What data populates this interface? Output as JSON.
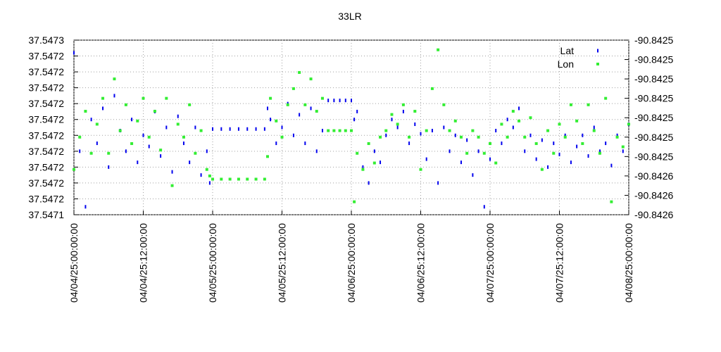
{
  "chart_data": {
    "type": "scatter",
    "title": "33LR",
    "grid": true,
    "legend": "top-right",
    "xlim": [
      "04/04/25:00:00:00",
      "04/08/25:00:00:00"
    ],
    "xticks": [
      "04/04/25:00:00:00",
      "04/04/25:12:00:00",
      "04/05/25:00:00:00",
      "04/05/25:12:00:00",
      "04/06/25:00:00:00",
      "04/06/25:12:00:00",
      "04/07/25:00:00:00",
      "04/07/25:12:00:00",
      "04/08/25:00:00:00"
    ],
    "ylim": [
      37.547145,
      37.547255
    ],
    "yticks": [
      {
        "value": 37.547145,
        "label": "37.5471"
      },
      {
        "value": 37.547155,
        "label": "37.5472"
      },
      {
        "value": 37.547165,
        "label": "37.5472"
      },
      {
        "value": 37.547175,
        "label": "37.5472"
      },
      {
        "value": 37.547185,
        "label": "37.5472"
      },
      {
        "value": 37.547195,
        "label": "37.5472"
      },
      {
        "value": 37.547205,
        "label": "37.5472"
      },
      {
        "value": 37.547215,
        "label": "37.5472"
      },
      {
        "value": 37.547225,
        "label": "37.5472"
      },
      {
        "value": 37.547235,
        "label": "37.5472"
      },
      {
        "value": 37.547245,
        "label": "37.5472"
      },
      {
        "value": 37.547255,
        "label": "37.5473"
      }
    ],
    "y2lim": [
      -90.842564,
      -90.84251
    ],
    "y2ticks": [
      {
        "value": -90.842564,
        "label": "-90.8426"
      },
      {
        "value": -90.842558,
        "label": "-90.8426"
      },
      {
        "value": -90.842552,
        "label": "-90.8426"
      },
      {
        "value": -90.842546,
        "label": "-90.8425"
      },
      {
        "value": -90.84254,
        "label": "-90.8425"
      },
      {
        "value": -90.842534,
        "label": "-90.8425"
      },
      {
        "value": -90.842528,
        "label": "-90.8425"
      },
      {
        "value": -90.842522,
        "label": "-90.8425"
      },
      {
        "value": -90.842516,
        "label": "-90.8425"
      },
      {
        "value": -90.84251,
        "label": "-90.8425"
      }
    ],
    "x": [
      "04/04/25:00:00:00",
      "04/04/25:01:00:00",
      "04/04/25:02:00:00",
      "04/04/25:03:00:00",
      "04/04/25:04:00:00",
      "04/04/25:05:00:00",
      "04/04/25:06:00:00",
      "04/04/25:07:00:00",
      "04/04/25:08:00:00",
      "04/04/25:09:00:00",
      "04/04/25:10:00:00",
      "04/04/25:11:00:00",
      "04/04/25:12:00:00",
      "04/04/25:13:00:00",
      "04/04/25:14:00:00",
      "04/04/25:15:00:00",
      "04/04/25:16:00:00",
      "04/04/25:17:00:00",
      "04/04/25:18:00:00",
      "04/04/25:19:00:00",
      "04/04/25:20:00:00",
      "04/04/25:21:00:00",
      "04/04/25:22:00:00",
      "04/04/25:23:00:00",
      "04/04/25:23:30:00",
      "04/05/25:00:00:00",
      "04/05/25:01:30:00",
      "04/05/25:03:00:00",
      "04/05/25:04:30:00",
      "04/05/25:06:00:00",
      "04/05/25:07:30:00",
      "04/05/25:09:00:00",
      "04/05/25:09:30:00",
      "04/05/25:10:00:00",
      "04/05/25:11:00:00",
      "04/05/25:12:00:00",
      "04/05/25:13:00:00",
      "04/05/25:14:00:00",
      "04/05/25:15:00:00",
      "04/05/25:16:00:00",
      "04/05/25:17:00:00",
      "04/05/25:18:00:00",
      "04/05/25:19:00:00",
      "04/05/25:20:00:00",
      "04/05/25:21:00:00",
      "04/05/25:22:00:00",
      "04/05/25:23:00:00",
      "04/06/25:00:00:00",
      "04/06/25:00:30:00",
      "04/06/25:01:00:00",
      "04/06/25:02:00:00",
      "04/06/25:03:00:00",
      "04/06/25:04:00:00",
      "04/06/25:05:00:00",
      "04/06/25:06:00:00",
      "04/06/25:07:00:00",
      "04/06/25:08:00:00",
      "04/06/25:09:00:00",
      "04/06/25:10:00:00",
      "04/06/25:11:00:00",
      "04/06/25:12:00:00",
      "04/06/25:13:00:00",
      "04/06/25:14:00:00",
      "04/06/25:15:00:00",
      "04/06/25:16:00:00",
      "04/06/25:17:00:00",
      "04/06/25:18:00:00",
      "04/06/25:19:00:00",
      "04/06/25:20:00:00",
      "04/06/25:21:00:00",
      "04/06/25:22:00:00",
      "04/06/25:23:00:00",
      "04/07/25:00:00:00",
      "04/07/25:01:00:00",
      "04/07/25:02:00:00",
      "04/07/25:03:00:00",
      "04/07/25:04:00:00",
      "04/07/25:05:00:00",
      "04/07/25:06:00:00",
      "04/07/25:07:00:00",
      "04/07/25:08:00:00",
      "04/07/25:09:00:00",
      "04/07/25:10:00:00",
      "04/07/25:11:00:00",
      "04/07/25:12:00:00",
      "04/07/25:13:00:00",
      "04/07/25:14:00:00",
      "04/07/25:15:00:00",
      "04/07/25:16:00:00",
      "04/07/25:17:00:00",
      "04/07/25:18:00:00",
      "04/07/25:19:00:00",
      "04/07/25:20:00:00",
      "04/07/25:21:00:00",
      "04/07/25:22:00:00",
      "04/07/25:23:00:00",
      "04/08/25:00:00:00"
    ],
    "series": [
      {
        "name": "Lat",
        "color": "#0000ee",
        "values": [
          37.547247,
          37.547185,
          37.54715,
          37.547205,
          37.54719,
          37.547212,
          37.547175,
          37.54722,
          37.547198,
          37.547185,
          37.547205,
          37.547178,
          37.547195,
          37.547188,
          37.54721,
          37.547182,
          37.5472,
          37.547172,
          37.547207,
          37.54719,
          37.547178,
          37.5472,
          37.54717,
          37.547185,
          37.547165,
          37.547199,
          37.547199,
          37.547199,
          37.547199,
          37.547199,
          37.547199,
          37.547199,
          37.547212,
          37.547205,
          37.54719,
          37.5472,
          37.547215,
          37.547195,
          37.547208,
          37.54719,
          37.547212,
          37.547185,
          37.547198,
          37.547217,
          37.547217,
          37.547217,
          37.547217,
          37.547217,
          37.547205,
          37.54721,
          37.547175,
          37.547165,
          37.547185,
          37.547178,
          37.547195,
          37.547205,
          37.5472,
          37.54721,
          37.54719,
          37.547202,
          37.547196,
          37.54718,
          37.547198,
          37.547165,
          37.5472,
          37.547185,
          37.547195,
          37.547178,
          37.547192,
          37.54717,
          37.547185,
          37.54715,
          37.54718,
          37.547198,
          37.54719,
          37.547205,
          37.5472,
          37.547212,
          37.547185,
          37.547195,
          37.54718,
          37.547192,
          37.547175,
          37.54719,
          37.547183,
          37.547195,
          37.547178,
          37.547188,
          37.547195,
          37.547182,
          37.5472,
          37.547185,
          37.54719,
          37.547176,
          37.547195,
          37.547185,
          37.547202
        ]
      },
      {
        "name": "Lon",
        "color": "#33ee33",
        "axis": "y2",
        "values": [
          -90.84255,
          -90.84254,
          -90.842532,
          -90.842545,
          -90.842536,
          -90.842528,
          -90.842545,
          -90.842522,
          -90.842538,
          -90.84253,
          -90.842542,
          -90.842535,
          -90.842528,
          -90.84254,
          -90.842532,
          -90.842544,
          -90.842528,
          -90.842555,
          -90.842536,
          -90.84254,
          -90.84253,
          -90.842545,
          -90.842538,
          -90.84255,
          -90.842552,
          -90.842553,
          -90.842553,
          -90.842553,
          -90.842553,
          -90.842553,
          -90.842553,
          -90.842553,
          -90.842546,
          -90.842528,
          -90.842535,
          -90.84254,
          -90.84253,
          -90.842525,
          -90.84252,
          -90.84253,
          -90.842522,
          -90.842532,
          -90.842528,
          -90.842538,
          -90.842538,
          -90.842538,
          -90.842538,
          -90.842538,
          -90.84256,
          -90.842545,
          -90.84255,
          -90.842542,
          -90.842548,
          -90.84254,
          -90.842538,
          -90.842533,
          -90.842536,
          -90.84253,
          -90.84254,
          -90.842532,
          -90.84255,
          -90.842538,
          -90.842525,
          -90.842513,
          -90.84253,
          -90.842538,
          -90.842535,
          -90.84254,
          -90.842545,
          -90.842538,
          -90.84254,
          -90.842545,
          -90.842542,
          -90.842548,
          -90.842536,
          -90.84254,
          -90.842532,
          -90.842535,
          -90.84254,
          -90.842534,
          -90.842542,
          -90.84255,
          -90.842538,
          -90.842545,
          -90.842536,
          -90.84254,
          -90.84253,
          -90.842535,
          -90.842542,
          -90.84253,
          -90.842538,
          -90.842545,
          -90.842528,
          -90.84256,
          -90.84254,
          -90.842543,
          -90.842536
        ]
      }
    ]
  }
}
